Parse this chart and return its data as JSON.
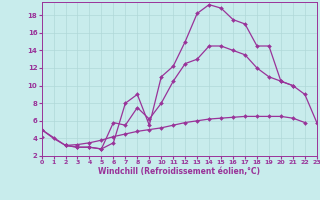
{
  "xlabel": "Windchill (Refroidissement éolien,°C)",
  "bg_color": "#c8ecec",
  "grid_color": "#b0d8d8",
  "line_color": "#993399",
  "xlim": [
    0,
    23
  ],
  "ylim": [
    2,
    19.5
  ],
  "xtick_labels": [
    "0",
    "1",
    "2",
    "3",
    "4",
    "5",
    "6",
    "7",
    "8",
    "9",
    "10",
    "11",
    "12",
    "13",
    "14",
    "15",
    "16",
    "17",
    "18",
    "19",
    "20",
    "21",
    "22",
    "23"
  ],
  "yticks": [
    2,
    4,
    6,
    8,
    10,
    12,
    14,
    16,
    18
  ],
  "line1_x": [
    0,
    1,
    2,
    3,
    4,
    5,
    6,
    7,
    8,
    9,
    10,
    11,
    12,
    13,
    14,
    15,
    16,
    17,
    18,
    19,
    20,
    21,
    22,
    23
  ],
  "line1_y": [
    5.0,
    4.0,
    3.2,
    3.0,
    3.0,
    2.8,
    3.5,
    8.0,
    9.0,
    5.5,
    11.0,
    12.2,
    15.0,
    18.2,
    19.2,
    18.8,
    17.5,
    17.0,
    14.5,
    14.5,
    10.5,
    10.0,
    null,
    null
  ],
  "line2_x": [
    0,
    2,
    3,
    4,
    5,
    6,
    7,
    8,
    9,
    10,
    11,
    12,
    13,
    14,
    15,
    16,
    17,
    18,
    19,
    20,
    21,
    22,
    23
  ],
  "line2_y": [
    5.0,
    3.2,
    3.0,
    3.0,
    2.8,
    5.8,
    5.5,
    7.5,
    6.2,
    8.0,
    10.5,
    12.5,
    13.0,
    14.5,
    14.5,
    14.0,
    13.5,
    12.0,
    11.0,
    10.5,
    10.0,
    9.0,
    5.8
  ],
  "line3_x": [
    0,
    1,
    2,
    3,
    4,
    5,
    6,
    7,
    8,
    9,
    10,
    11,
    12,
    13,
    14,
    15,
    16,
    17,
    18,
    19,
    20,
    21,
    22,
    23
  ],
  "line3_y": [
    4.2,
    null,
    3.2,
    3.3,
    3.5,
    3.8,
    4.2,
    4.5,
    4.8,
    5.0,
    5.2,
    5.5,
    5.8,
    6.0,
    6.2,
    6.3,
    6.4,
    6.5,
    6.5,
    6.5,
    6.5,
    6.3,
    5.8,
    null
  ]
}
